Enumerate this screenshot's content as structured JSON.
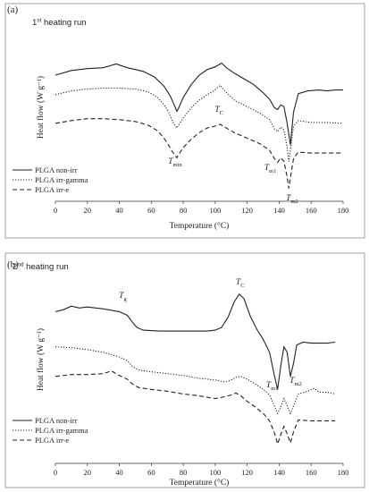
{
  "chart_data": [
    {
      "type": "line",
      "panel_label": "(a)",
      "run_label": "1st heating run",
      "run_label_parts": [
        "1",
        "st",
        " heating run"
      ],
      "xlabel": "Temperature (°C)",
      "ylabel": "Heat flow (W g⁻¹)",
      "xlim": [
        0,
        180
      ],
      "xticks": [
        0,
        20,
        40,
        60,
        80,
        100,
        120,
        140,
        160,
        180
      ],
      "legend": [
        "PLGA non-irr",
        "PLGA irr-gamma",
        "PLGA irr-e"
      ],
      "annotations": [
        {
          "main": "T",
          "sub": "min",
          "x": 76
        },
        {
          "main": "T",
          "sub": "C",
          "x": 103
        },
        {
          "main": "T",
          "sub": "m1",
          "x": 139
        },
        {
          "main": "T",
          "sub": "m2",
          "x": 147
        }
      ],
      "series": [
        {
          "name": "PLGA non-irr",
          "style": "solid",
          "x": [
            0,
            10,
            20,
            30,
            38,
            45,
            55,
            62,
            68,
            72,
            75,
            76,
            77,
            80,
            85,
            90,
            95,
            100,
            104,
            107,
            112,
            118,
            124,
            130,
            134,
            137,
            139,
            141,
            143,
            145,
            147,
            149,
            152,
            158,
            165,
            170,
            175,
            180
          ],
          "y": [
            2.6,
            3.1,
            3.3,
            3.4,
            3.8,
            3.4,
            3.0,
            2.4,
            1.4,
            0.3,
            -0.9,
            -1.3,
            -1.0,
            0.2,
            1.6,
            2.6,
            3.2,
            3.5,
            3.9,
            3.4,
            2.8,
            2.2,
            1.6,
            0.7,
            0.0,
            -0.9,
            -1.1,
            -0.6,
            -0.8,
            -2.6,
            -4.9,
            -1.4,
            0.6,
            0.9,
            1.0,
            0.9,
            1.0,
            1.0
          ]
        },
        {
          "name": "PLGA irr-gamma",
          "style": "dotted",
          "x": [
            0,
            10,
            20,
            30,
            40,
            50,
            58,
            64,
            68,
            71,
            73,
            75,
            76,
            77,
            80,
            85,
            90,
            95,
            99,
            103,
            106,
            112,
            120,
            128,
            134,
            137,
            139,
            141,
            143,
            145,
            146,
            147,
            149,
            152,
            160,
            170,
            180
          ],
          "y": [
            0.5,
            0.9,
            1.1,
            1.2,
            1.2,
            1.1,
            0.8,
            0.2,
            -0.6,
            -1.4,
            -2.3,
            -2.9,
            -3.1,
            -2.8,
            -2.0,
            -0.9,
            -0.1,
            0.5,
            0.9,
            1.5,
            0.9,
            -0.1,
            -0.8,
            -1.5,
            -2.2,
            -3.2,
            -3.5,
            -3.0,
            -3.3,
            -5.2,
            -6.7,
            -5.5,
            -2.9,
            -2.3,
            -2.5,
            -2.5,
            -2.6
          ]
        },
        {
          "name": "PLGA irr-e",
          "style": "dashed",
          "x": [
            0,
            10,
            20,
            30,
            40,
            50,
            58,
            64,
            68,
            71,
            73,
            75,
            76,
            77,
            80,
            85,
            90,
            95,
            100,
            103,
            106,
            112,
            120,
            128,
            134,
            137,
            139,
            141,
            143,
            145,
            146,
            147,
            149,
            152,
            160,
            170,
            180
          ],
          "y": [
            -2.6,
            -2.3,
            -2.1,
            -2.1,
            -2.2,
            -2.4,
            -2.8,
            -3.4,
            -4.2,
            -5.0,
            -5.6,
            -6.1,
            -6.3,
            -6.0,
            -5.2,
            -4.3,
            -3.6,
            -3.1,
            -2.9,
            -2.7,
            -3.0,
            -3.6,
            -4.2,
            -4.8,
            -5.5,
            -6.4,
            -6.8,
            -6.3,
            -6.7,
            -8.4,
            -9.6,
            -8.5,
            -6.4,
            -5.7,
            -5.8,
            -5.8,
            -5.8
          ]
        }
      ]
    },
    {
      "type": "line",
      "panel_label": "(b)",
      "run_label": "2nd heating run",
      "run_label_parts": [
        "2",
        "nd",
        " heating run"
      ],
      "xlabel": "Temperature (°C)",
      "ylabel": "Heat flow (W g⁻¹)",
      "xlim": [
        0,
        180
      ],
      "xticks": [
        0,
        20,
        40,
        60,
        80,
        100,
        120,
        140,
        160,
        180
      ],
      "legend": [
        "PLGA non-irr",
        "PLGA irr-gamma",
        "PLGA irr-e"
      ],
      "annotations": [
        {
          "main": "T",
          "sub": "g",
          "x": 50
        },
        {
          "main": "T",
          "sub": "C",
          "x": 115
        },
        {
          "main": "T",
          "sub": "m1",
          "x": 139
        },
        {
          "main": "T",
          "sub": "m2",
          "x": 147
        }
      ],
      "series": [
        {
          "name": "PLGA non-irr",
          "style": "solid",
          "x": [
            0,
            5,
            10,
            15,
            20,
            30,
            40,
            45,
            48,
            51,
            55,
            65,
            75,
            85,
            95,
            100,
            104,
            108,
            112,
            115,
            118,
            122,
            126,
            130,
            134,
            137,
            139,
            141,
            143,
            145,
            147,
            149,
            151,
            155,
            160,
            170,
            175
          ],
          "y": [
            4.4,
            4.6,
            5.0,
            4.8,
            4.9,
            4.7,
            4.4,
            4.0,
            3.3,
            2.7,
            2.4,
            2.3,
            2.3,
            2.3,
            2.3,
            2.4,
            2.7,
            3.8,
            5.5,
            6.3,
            5.8,
            3.9,
            2.5,
            1.4,
            0.0,
            -2.5,
            -4.0,
            -1.5,
            0.6,
            0.0,
            -2.6,
            -1.2,
            0.8,
            1.1,
            1.0,
            1.0,
            1.1
          ]
        },
        {
          "name": "PLGA irr-gamma",
          "style": "dotted",
          "x": [
            0,
            10,
            20,
            30,
            40,
            45,
            48,
            52,
            60,
            70,
            80,
            90,
            100,
            106,
            110,
            113,
            116,
            120,
            125,
            130,
            134,
            137,
            139,
            141,
            143,
            145,
            147,
            149,
            152,
            158,
            162,
            165,
            170,
            175
          ],
          "y": [
            0.6,
            0.5,
            0.3,
            0.0,
            -0.5,
            -0.9,
            -1.5,
            -1.9,
            -2.1,
            -2.3,
            -2.5,
            -2.8,
            -3.0,
            -3.2,
            -3.0,
            -2.7,
            -2.6,
            -2.9,
            -3.4,
            -4.0,
            -4.6,
            -5.8,
            -6.6,
            -5.9,
            -5.0,
            -5.8,
            -6.6,
            -5.8,
            -4.5,
            -4.2,
            -3.9,
            -4.3,
            -4.3,
            -4.5
          ]
        },
        {
          "name": "PLGA irr-e",
          "style": "dashed",
          "x": [
            0,
            10,
            20,
            30,
            35,
            40,
            45,
            48,
            52,
            60,
            70,
            80,
            90,
            100,
            106,
            110,
            113,
            116,
            120,
            125,
            130,
            134,
            137,
            139,
            141,
            143,
            145,
            147,
            149,
            152,
            160,
            170,
            175
          ],
          "y": [
            -2.6,
            -2.4,
            -2.4,
            -2.3,
            -2.0,
            -2.5,
            -2.9,
            -3.4,
            -3.8,
            -4.0,
            -4.2,
            -4.5,
            -4.7,
            -5.0,
            -4.8,
            -4.6,
            -4.4,
            -4.7,
            -5.3,
            -5.9,
            -6.6,
            -7.4,
            -8.7,
            -9.9,
            -8.9,
            -8.0,
            -8.8,
            -9.8,
            -8.6,
            -7.3,
            -7.4,
            -7.4,
            -7.4
          ]
        }
      ]
    }
  ]
}
